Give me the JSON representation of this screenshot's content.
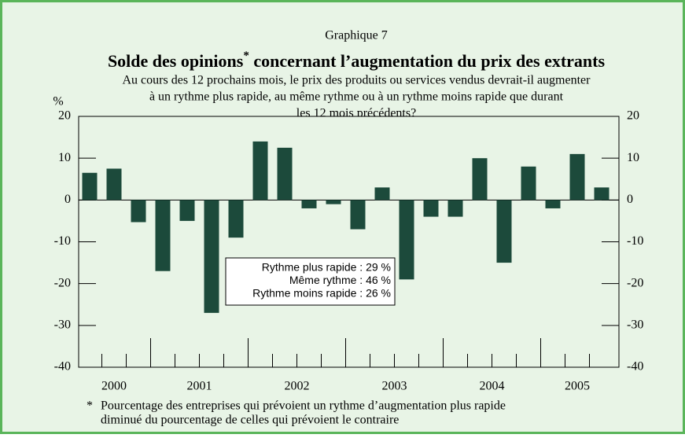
{
  "chart_data": {
    "type": "bar",
    "header": "Graphique 7",
    "title": [
      "Solde des opinions",
      "*",
      " concernant l’augmentation du prix des extrants"
    ],
    "subtitle": [
      "Au cours des 12 prochains mois, le prix des produits ou services vendus devrait-il augmenter",
      "à un rythme plus rapide, au même rythme ou à un rythme moins rapide que durant",
      "les 12 mois précédents?"
    ],
    "ylabel": "%",
    "categories": [
      "2000",
      "2000",
      "2000",
      "2001",
      "2001",
      "2001",
      "2001",
      "2002",
      "2002",
      "2002",
      "2002",
      "2003",
      "2003",
      "2003",
      "2003",
      "2004",
      "2004",
      "2004",
      "2004",
      "2005",
      "2005",
      "2005"
    ],
    "values": [
      6.5,
      7.5,
      -5.3,
      -17,
      -5,
      -27,
      -9,
      14,
      12.5,
      -2,
      -1,
      -7,
      3,
      -19,
      -4,
      -4,
      10,
      -15,
      8,
      -2,
      11,
      3
    ],
    "color": "#1c4a3b",
    "ylim": [
      -40,
      20
    ],
    "yticks": [
      20,
      10,
      0,
      -10,
      -20,
      -30,
      -40
    ],
    "annotation": [
      "Rythme plus rapide : 29 %",
      "Même rythme : 46 %",
      "Rythme moins rapide : 26 %"
    ],
    "footnote": [
      "*",
      "Pourcentage des entreprises qui prévoient un rythme d’augmentation plus rapide",
      "diminué du pourcentage de celles qui prévoient le contraire"
    ]
  }
}
